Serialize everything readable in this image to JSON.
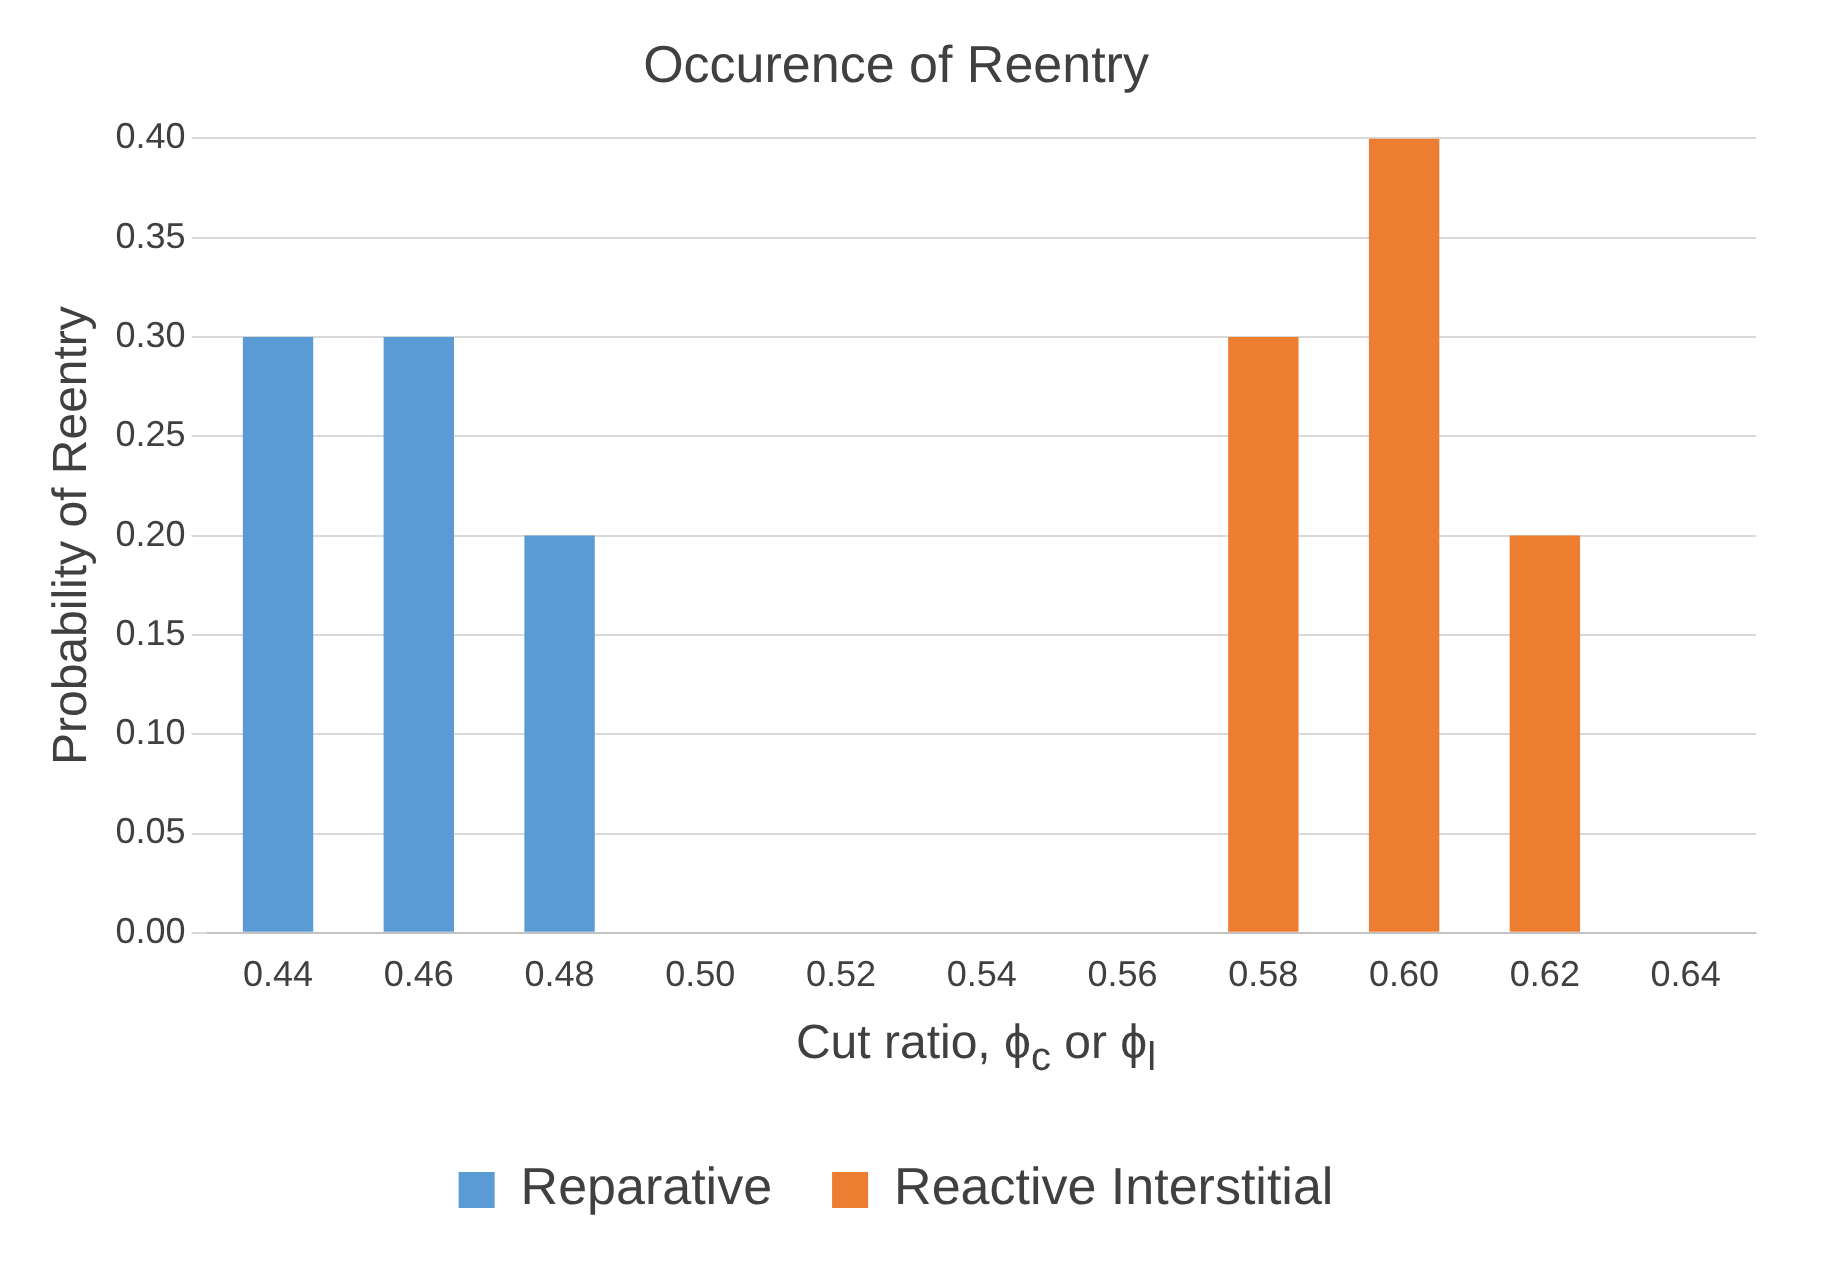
{
  "chart_data": {
    "type": "bar",
    "title": "Occurence of Reentry",
    "xlabel": "Cut ratio, ϕ$_{c}$ or ϕ$_{l}$",
    "ylabel": "Probability of Reentry",
    "categories": [
      "0.44",
      "0.46",
      "0.48",
      "0.50",
      "0.52",
      "0.54",
      "0.56",
      "0.58",
      "0.60",
      "0.62",
      "0.64"
    ],
    "series": [
      {
        "name": "Reparative",
        "color": "#5b9bd5",
        "values": [
          0.3,
          0.3,
          0.2,
          0,
          0,
          null,
          null,
          null,
          null,
          null,
          null
        ]
      },
      {
        "name": "Reactive Interstitial",
        "color": "#ed7d31",
        "values": [
          null,
          null,
          null,
          null,
          null,
          0,
          0,
          0.3,
          0.4,
          0.2,
          0
        ]
      }
    ],
    "ylim": [
      0,
      0.4
    ],
    "yticks": [
      {
        "value": 0,
        "label": "0.00"
      },
      {
        "value": 0.05,
        "label": "0.05"
      },
      {
        "value": 0.1,
        "label": "0.10"
      },
      {
        "value": 0.15,
        "label": "0.15"
      },
      {
        "value": 0.2,
        "label": "0.20"
      },
      {
        "value": 0.25,
        "label": "0.25"
      },
      {
        "value": 0.3,
        "label": "0.30"
      },
      {
        "value": 0.35,
        "label": "0.35"
      },
      {
        "value": 0.4,
        "label": "0.40"
      }
    ],
    "grid": "y",
    "legend": "bottom"
  }
}
